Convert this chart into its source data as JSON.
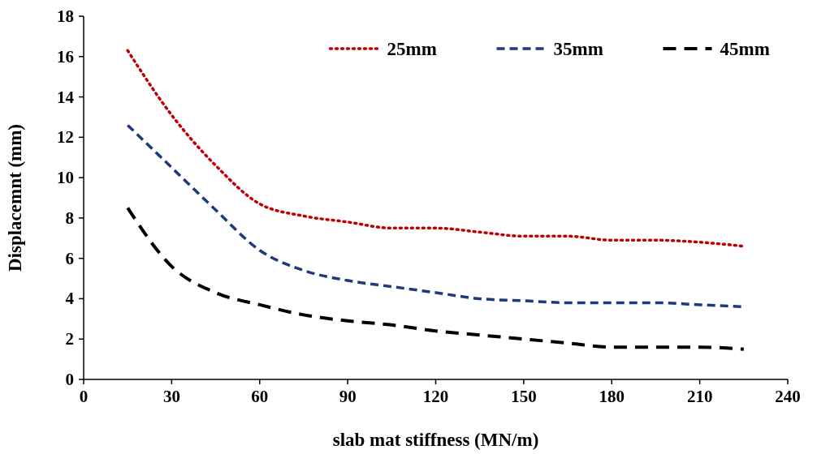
{
  "chart_data": {
    "type": "line",
    "xlabel": "slab mat stiffness (MN/m)",
    "ylabel": "Displacemnt (mm)",
    "x": [
      15,
      30,
      45,
      60,
      75,
      90,
      105,
      120,
      135,
      150,
      165,
      180,
      195,
      210,
      225
    ],
    "xlim": [
      0,
      240
    ],
    "xticks": [
      0,
      30,
      60,
      90,
      120,
      150,
      180,
      210,
      240
    ],
    "ylim": [
      0,
      18
    ],
    "yticks": [
      0,
      2,
      4,
      6,
      8,
      10,
      12,
      14,
      16,
      18
    ],
    "grid": false,
    "legend": "top",
    "marker": "none",
    "series": [
      {
        "name": "25mm",
        "color": "#c00000",
        "line_style": "dotted",
        "values": [
          16.3,
          13.1,
          10.6,
          8.7,
          8.1,
          7.8,
          7.5,
          7.5,
          7.3,
          7.1,
          7.1,
          6.9,
          6.9,
          6.8,
          6.6
        ]
      },
      {
        "name": "35mm",
        "color": "#1f3a7a",
        "line_style": "dashed",
        "values": [
          12.6,
          10.5,
          8.4,
          6.4,
          5.4,
          4.9,
          4.6,
          4.3,
          4.0,
          3.9,
          3.8,
          3.8,
          3.8,
          3.7,
          3.6
        ]
      },
      {
        "name": "45mm",
        "color": "#000000",
        "line_style": "dashed",
        "values": [
          8.5,
          5.6,
          4.3,
          3.7,
          3.2,
          2.9,
          2.7,
          2.4,
          2.2,
          2.0,
          1.8,
          1.6,
          1.6,
          1.6,
          1.5
        ]
      }
    ]
  }
}
